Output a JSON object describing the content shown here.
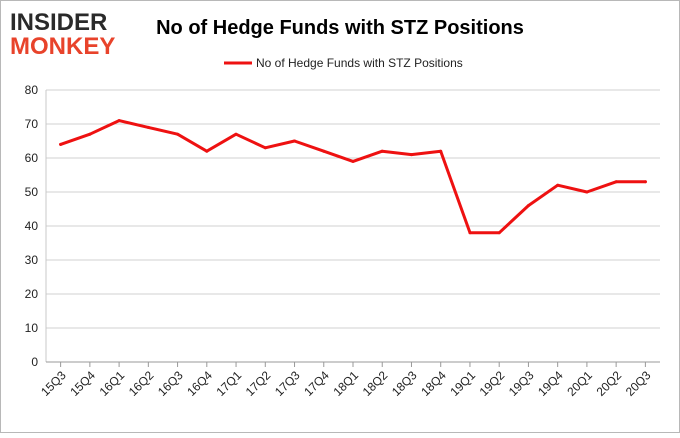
{
  "logo": {
    "line1": "INSIDER",
    "line2": "MONKEY"
  },
  "colors": {
    "series": "#ee1111",
    "logo_dark": "#2a2a2a",
    "logo_red": "#e8432b",
    "grid": "#d0d0d0",
    "frame": "#b8b8b8"
  },
  "chart_data": {
    "type": "line",
    "title": "No of Hedge Funds with STZ Positions",
    "xlabel": "",
    "ylabel": "",
    "ylim": [
      0,
      80
    ],
    "yticks": [
      0,
      10,
      20,
      30,
      40,
      50,
      60,
      70,
      80
    ],
    "grid": true,
    "legend_position": "top-center",
    "categories": [
      "15Q3",
      "15Q4",
      "16Q1",
      "16Q2",
      "16Q3",
      "16Q4",
      "17Q1",
      "17Q2",
      "17Q3",
      "17Q4",
      "18Q1",
      "18Q2",
      "18Q3",
      "18Q4",
      "19Q1",
      "19Q2",
      "19Q3",
      "19Q4",
      "20Q1",
      "20Q2",
      "20Q3"
    ],
    "series": [
      {
        "name": "No of Hedge Funds with STZ Positions",
        "values": [
          64,
          67,
          71,
          69,
          67,
          62,
          67,
          63,
          65,
          62,
          59,
          62,
          61,
          62,
          38,
          38,
          46,
          52,
          50,
          53,
          53
        ]
      }
    ]
  }
}
